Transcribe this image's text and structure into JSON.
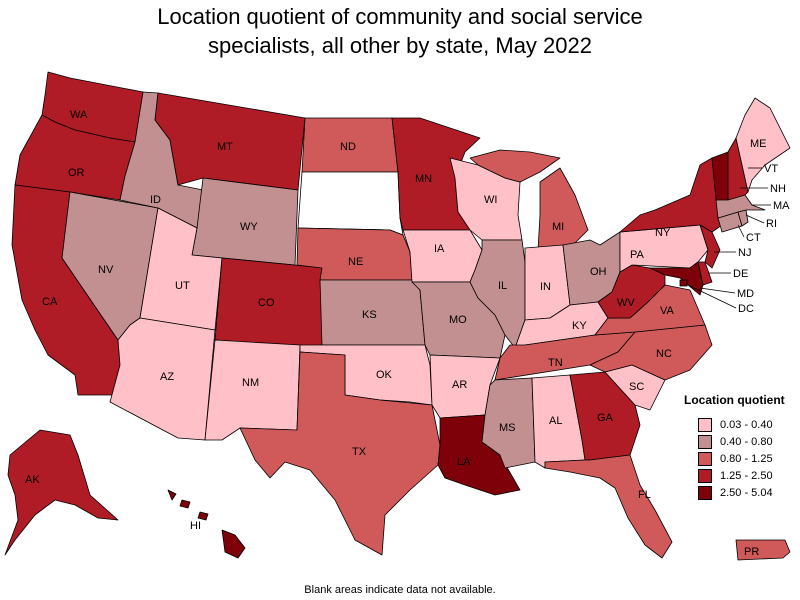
{
  "title_line1": "Location quotient of community and social service",
  "title_line2": "specialists, all other by state, May 2022",
  "legend": {
    "title": "Location quotient",
    "bins": [
      {
        "label": "0.03 - 0.40",
        "color": "#ffc0c8"
      },
      {
        "label": "0.40 - 0.80",
        "color": "#c29090"
      },
      {
        "label": "0.80 - 1.25",
        "color": "#d05a5a"
      },
      {
        "label": "1.25 - 2.50",
        "color": "#b01c26"
      },
      {
        "label": "2.50 - 5.04",
        "color": "#7e0008"
      }
    ]
  },
  "footnote": "Blank areas indicate data not available.",
  "no_data_color": "#ffffff",
  "states": {
    "WA": 3,
    "OR": 3,
    "CA": 3,
    "NV": 1,
    "ID": 1,
    "MT": 3,
    "WY": 1,
    "UT": 0,
    "AZ": 0,
    "CO": 3,
    "NM": 0,
    "ND": 2,
    "SD": null,
    "NE": 2,
    "KS": 1,
    "OK": 0,
    "TX": 2,
    "MN": 3,
    "IA": 0,
    "MO": 1,
    "AR": 0,
    "LA": 4,
    "WI": 0,
    "IL": 1,
    "MI": 2,
    "IN": 0,
    "OH": 1,
    "KY": 0,
    "TN": 2,
    "MS": 1,
    "AL": 0,
    "GA": 3,
    "FL": 2,
    "SC": 0,
    "NC": 2,
    "VA": 2,
    "WV": 3,
    "PA": 0,
    "NY": 3,
    "ME": 0,
    "VT": 4,
    "NH": 3,
    "MA": 1,
    "RI": 1,
    "CT": 1,
    "NJ": 3,
    "DE": 3,
    "MD": 4,
    "DC": 4,
    "AK": 3,
    "HI": 4,
    "PR": 2
  }
}
